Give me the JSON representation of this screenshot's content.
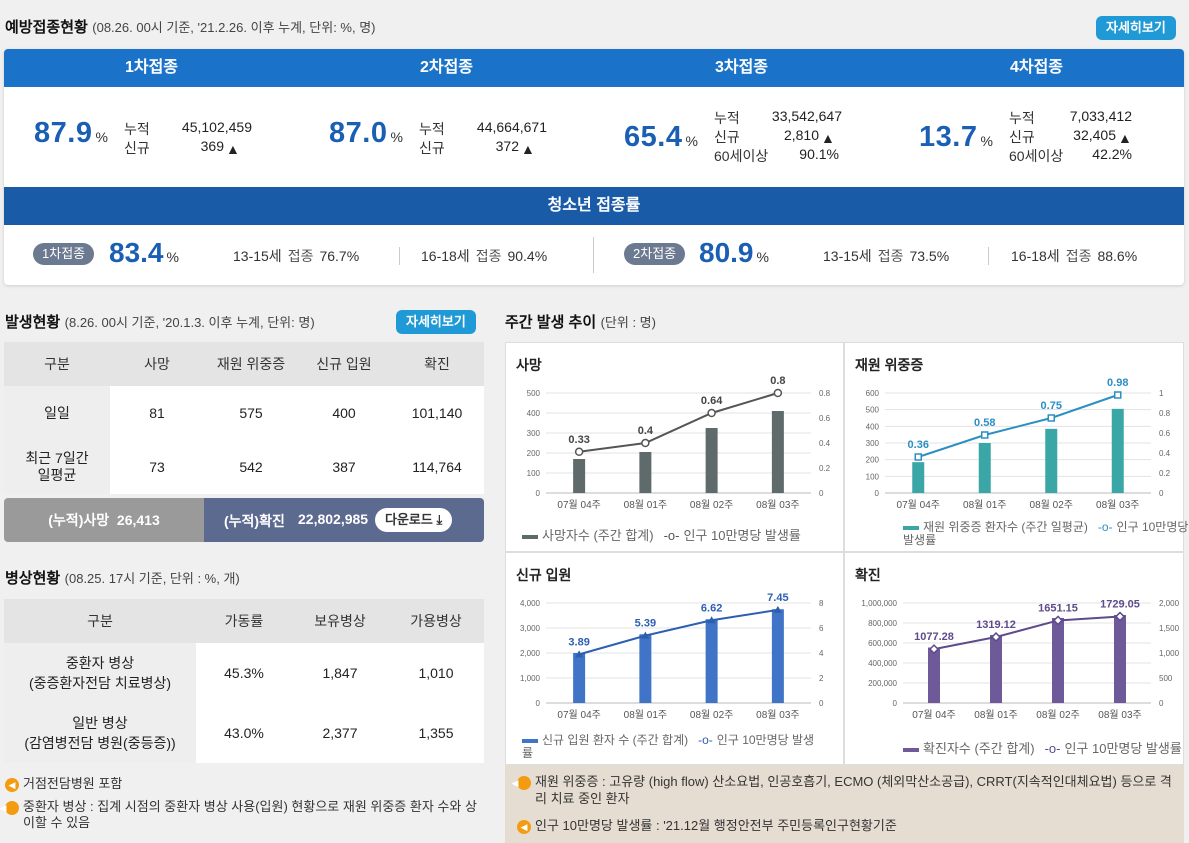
{
  "vaccination": {
    "title": "예방접종현황",
    "subtitle": "(08.26. 00시 기준, '21.2.26. 이후 누계, 단위: %, 명)",
    "more_label": "자세히보기",
    "doses": [
      {
        "name": "1차접종",
        "pct": "87.9",
        "unit": "%",
        "rows": [
          {
            "label": "누적",
            "value": "45,102,459"
          },
          {
            "label": "신규",
            "value": "369"
          }
        ]
      },
      {
        "name": "2차접종",
        "pct": "87.0",
        "unit": "%",
        "rows": [
          {
            "label": "누적",
            "value": "44,664,671"
          },
          {
            "label": "신규",
            "value": "372"
          }
        ]
      },
      {
        "name": "3차접종",
        "pct": "65.4",
        "unit": "%",
        "rows": [
          {
            "label": "누적",
            "value": "33,542,647"
          },
          {
            "label": "신규",
            "value": "2,810"
          },
          {
            "label": "60세이상",
            "value": "90.1%"
          }
        ]
      },
      {
        "name": "4차접종",
        "pct": "13.7",
        "unit": "%",
        "rows": [
          {
            "label": "누적",
            "value": "7,033,412"
          },
          {
            "label": "신규",
            "value": "32,405"
          },
          {
            "label": "60세이상",
            "value": "42.2%"
          }
        ]
      }
    ],
    "youth": {
      "title": "청소년 접종률",
      "first": {
        "badge": "1차접종",
        "pct": "83.4",
        "unit": "%",
        "g1_age": "13-15세",
        "g1_label": "접종",
        "g1_val": "76.7%",
        "g2_age": "16-18세",
        "g2_label": "접종",
        "g2_val": "90.4%"
      },
      "second": {
        "badge": "2차접종",
        "pct": "80.9",
        "unit": "%",
        "g1_age": "13-15세",
        "g1_label": "접종",
        "g1_val": "73.5%",
        "g2_age": "16-18세",
        "g2_label": "접종",
        "g2_val": "88.6%"
      }
    }
  },
  "occurrence": {
    "title": "발생현황",
    "subtitle": "(8.26. 00시 기준, '20.1.3. 이후 누계, 단위: 명)",
    "more_label": "자세히보기",
    "headers": [
      "구분",
      "사망",
      "재원 위중증",
      "신규 입원",
      "확진"
    ],
    "rows": [
      {
        "label": "일일",
        "values": [
          "81",
          "575",
          "400",
          "101,140"
        ]
      },
      {
        "label": "최근 7일간\n일평균",
        "values": [
          "73",
          "542",
          "387",
          "114,764"
        ]
      }
    ],
    "cum_death_label": "(누적)사망",
    "cum_death_value": "26,413",
    "cum_confirmed_label": "(누적)확진",
    "cum_confirmed_value": "22,802,985",
    "download_label": "다운로드"
  },
  "beds": {
    "title": "병상현황",
    "subtitle": "(08.25. 17시 기준, 단위 : %, 개)",
    "headers": [
      "구분",
      "가동률",
      "보유병상",
      "가용병상"
    ],
    "rows": [
      {
        "label": "중환자 병상\n(중증환자전담 치료병상)",
        "values": [
          "45.3%",
          "1,847",
          "1,010"
        ]
      },
      {
        "label": "일반 병상\n(감염병전담 병원(중등증))",
        "values": [
          "43.0%",
          "2,377",
          "1,355"
        ]
      }
    ]
  },
  "notes_left": [
    "거점전담병원 포함",
    "중환자 병상 : 집계 시점의 중환자 병상 사용(입원) 현황으로 재원 위중증 환자 수와 상이할 수 있음"
  ],
  "notes_right": [
    "재원 위중증 : 고유량 (high flow) 산소요법, 인공호흡기, ECMO (체외막산소공급), CRRT(지속적인대체요법) 등으로 격리 치료 중인 환자",
    "인구 10만명당 발생률 : '21.12월 행정안전부 주민등록인구현황기준"
  ],
  "weekly": {
    "title": "주간 발생 추이",
    "subtitle": "(단위 : 명)"
  },
  "chart_data": [
    {
      "type": "bar",
      "title": "사망",
      "categories": [
        "07월 04주",
        "08월 01주",
        "08월 02주",
        "08월 03주"
      ],
      "series": [
        {
          "name": "사망자수 (주간 합계)",
          "values": [
            170,
            205,
            325,
            410
          ]
        },
        {
          "name": "인구 10만명당 발생률",
          "values": [
            0.33,
            0.4,
            0.64,
            0.8
          ],
          "type": "line"
        }
      ],
      "ylim": [
        0,
        500
      ],
      "y2lim": [
        0,
        0.8
      ],
      "yticks": [
        "0",
        "100",
        "200",
        "300",
        "400",
        "500"
      ],
      "y2ticks": [
        "0",
        "0.2",
        "0.4",
        "0.6",
        "0.8"
      ],
      "bar_color": "#5f6b6b",
      "line_color": "#555555"
    },
    {
      "type": "bar",
      "title": "재원 위중증",
      "categories": [
        "07월 04주",
        "08월 01주",
        "08월 02주",
        "08월 03주"
      ],
      "series": [
        {
          "name": "재원 위중증 환자수 (주간 일평균)",
          "values": [
            185,
            300,
            385,
            505
          ]
        },
        {
          "name": "인구 10만명당 발생률",
          "values": [
            0.36,
            0.58,
            0.75,
            0.98
          ],
          "type": "line"
        }
      ],
      "ylim": [
        0,
        600
      ],
      "y2lim": [
        0,
        1
      ],
      "yticks": [
        "0",
        "100",
        "200",
        "300",
        "400",
        "500",
        "600"
      ],
      "y2ticks": [
        "0",
        "0.2",
        "0.4",
        "0.6",
        "0.8",
        "1"
      ],
      "bar_color": "#3aa6a6",
      "line_color": "#2b8fc4"
    },
    {
      "type": "bar",
      "title": "신규 입원",
      "categories": [
        "07월 04주",
        "08월 01주",
        "08월 02주",
        "08월 03주"
      ],
      "series": [
        {
          "name": "신규 입원 환자 수 (주간 합계)",
          "values": [
            2000,
            2750,
            3350,
            3750
          ]
        },
        {
          "name": "인구 10만명당 발생률",
          "values": [
            3.89,
            5.39,
            6.62,
            7.45
          ],
          "type": "line"
        }
      ],
      "ylim": [
        0,
        4000
      ],
      "y2lim": [
        0,
        8
      ],
      "yticks": [
        "0",
        "1,000",
        "2,000",
        "3,000",
        "4,000"
      ],
      "y2ticks": [
        "0",
        "2",
        "4",
        "6",
        "8"
      ],
      "bar_color": "#3f74c7",
      "line_color": "#2d5fb0"
    },
    {
      "type": "bar",
      "title": "확진",
      "categories": [
        "07월 04주",
        "08월 01주",
        "08월 02주",
        "08월 03주"
      ],
      "series": [
        {
          "name": "확진자수 (주간 합계)",
          "values": [
            555000,
            680000,
            850000,
            880000
          ]
        },
        {
          "name": "인구 10만명당 발생률",
          "values": [
            1077.28,
            1319.12,
            1651.15,
            1729.05
          ],
          "type": "line"
        }
      ],
      "ylim": [
        0,
        1000000
      ],
      "y2lim": [
        0,
        2000
      ],
      "yticks": [
        "0",
        "200,000",
        "400,000",
        "600,000",
        "800,000",
        "1,000,000"
      ],
      "y2ticks": [
        "0",
        "500",
        "1,000",
        "1,500",
        "2,000"
      ],
      "bar_color": "#6e5a99",
      "line_color": "#5e4a8c"
    }
  ]
}
